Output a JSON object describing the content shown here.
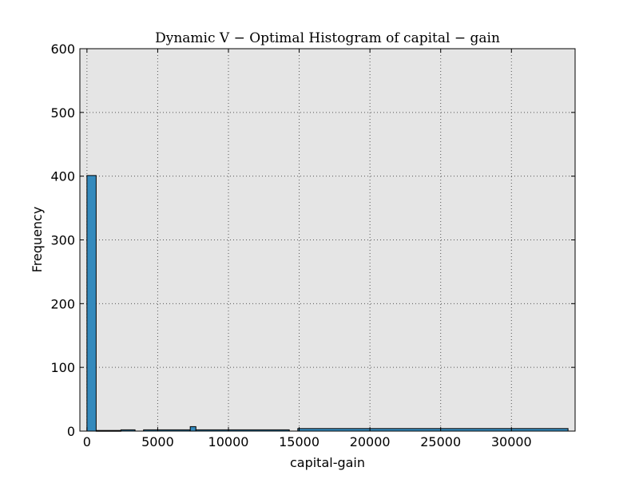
{
  "chart_data": {
    "type": "bar",
    "title": "Dynamic V − Optimal Histogram of capital − gain",
    "xlabel": "capital-gain",
    "ylabel": "Frequency",
    "xlim": [
      -500,
      34500
    ],
    "ylim": [
      0,
      600
    ],
    "x_ticks": [
      0,
      5000,
      10000,
      15000,
      20000,
      25000,
      30000
    ],
    "y_ticks": [
      0,
      100,
      200,
      300,
      400,
      500,
      600
    ],
    "grid": true,
    "background": "#e5e5e5",
    "bar_color": "#348abd",
    "bins": [
      {
        "x0": 0,
        "x1": 650,
        "count": 401
      },
      {
        "x0": 650,
        "x1": 2400,
        "count": 1
      },
      {
        "x0": 2400,
        "x1": 3400,
        "count": 2
      },
      {
        "x0": 4000,
        "x1": 7300,
        "count": 2
      },
      {
        "x0": 7300,
        "x1": 7700,
        "count": 7
      },
      {
        "x0": 7700,
        "x1": 14300,
        "count": 2
      },
      {
        "x0": 14900,
        "x1": 34000,
        "count": 4
      }
    ]
  }
}
